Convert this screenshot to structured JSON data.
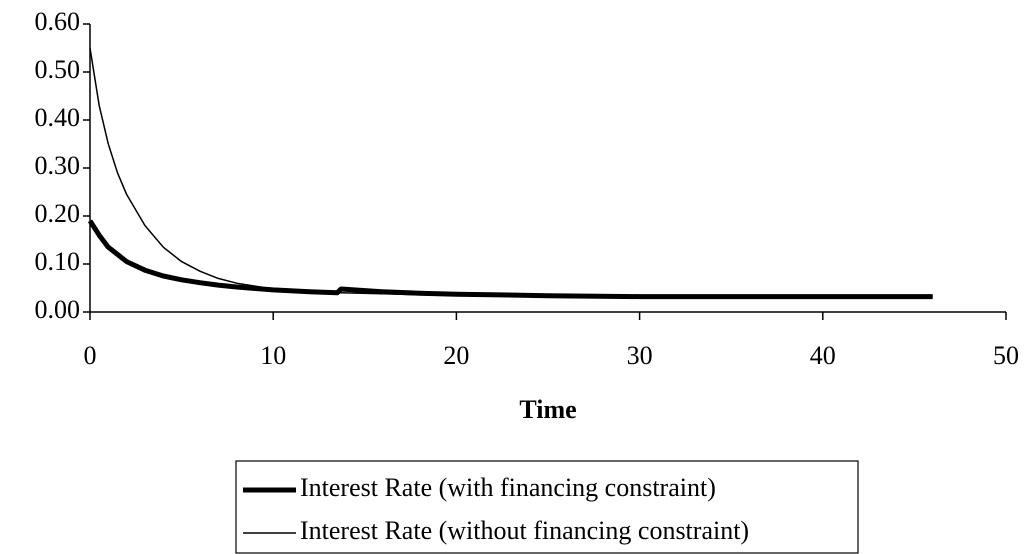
{
  "chart_data": {
    "type": "line",
    "x_label": "Time",
    "x": [
      0,
      0.5,
      1,
      1.5,
      2,
      3,
      4,
      5,
      6,
      7,
      8,
      10,
      12,
      13.5,
      13.7,
      16,
      18,
      20,
      25,
      30,
      35,
      40,
      46
    ],
    "series": [
      {
        "name": "Interest Rate (with financing constraint)",
        "color": "#000000",
        "values": [
          0.19,
          0.16,
          0.135,
          0.12,
          0.105,
          0.087,
          0.075,
          0.067,
          0.061,
          0.056,
          0.052,
          0.046,
          0.042,
          0.04,
          0.048,
          0.042,
          0.039,
          0.037,
          0.034,
          0.032,
          0.032,
          0.032,
          0.032
        ]
      },
      {
        "name": "Interest Rate (without financing constraint)",
        "color": "#000000",
        "values": [
          0.55,
          0.43,
          0.35,
          0.29,
          0.245,
          0.18,
          0.135,
          0.105,
          0.085,
          0.07,
          0.06,
          0.048,
          0.043,
          0.04,
          0.04,
          0.038,
          0.036,
          0.035,
          0.033,
          0.032,
          0.032,
          0.032,
          0.032
        ]
      }
    ],
    "xlim": [
      0,
      50
    ],
    "xticks": [
      0,
      10,
      20,
      30,
      40,
      50
    ],
    "ylim": [
      0,
      0.6
    ],
    "yticks": [
      {
        "value": 0,
        "label": "0.00"
      },
      {
        "value": 0.1,
        "label": "0.10"
      },
      {
        "value": 0.2,
        "label": "0.20"
      },
      {
        "value": 0.3,
        "label": "0.30"
      },
      {
        "value": 0.4,
        "label": "0.40"
      },
      {
        "value": 0.5,
        "label": "0.50"
      },
      {
        "value": 0.6,
        "label": "0.60"
      }
    ],
    "legend": "bottom"
  }
}
